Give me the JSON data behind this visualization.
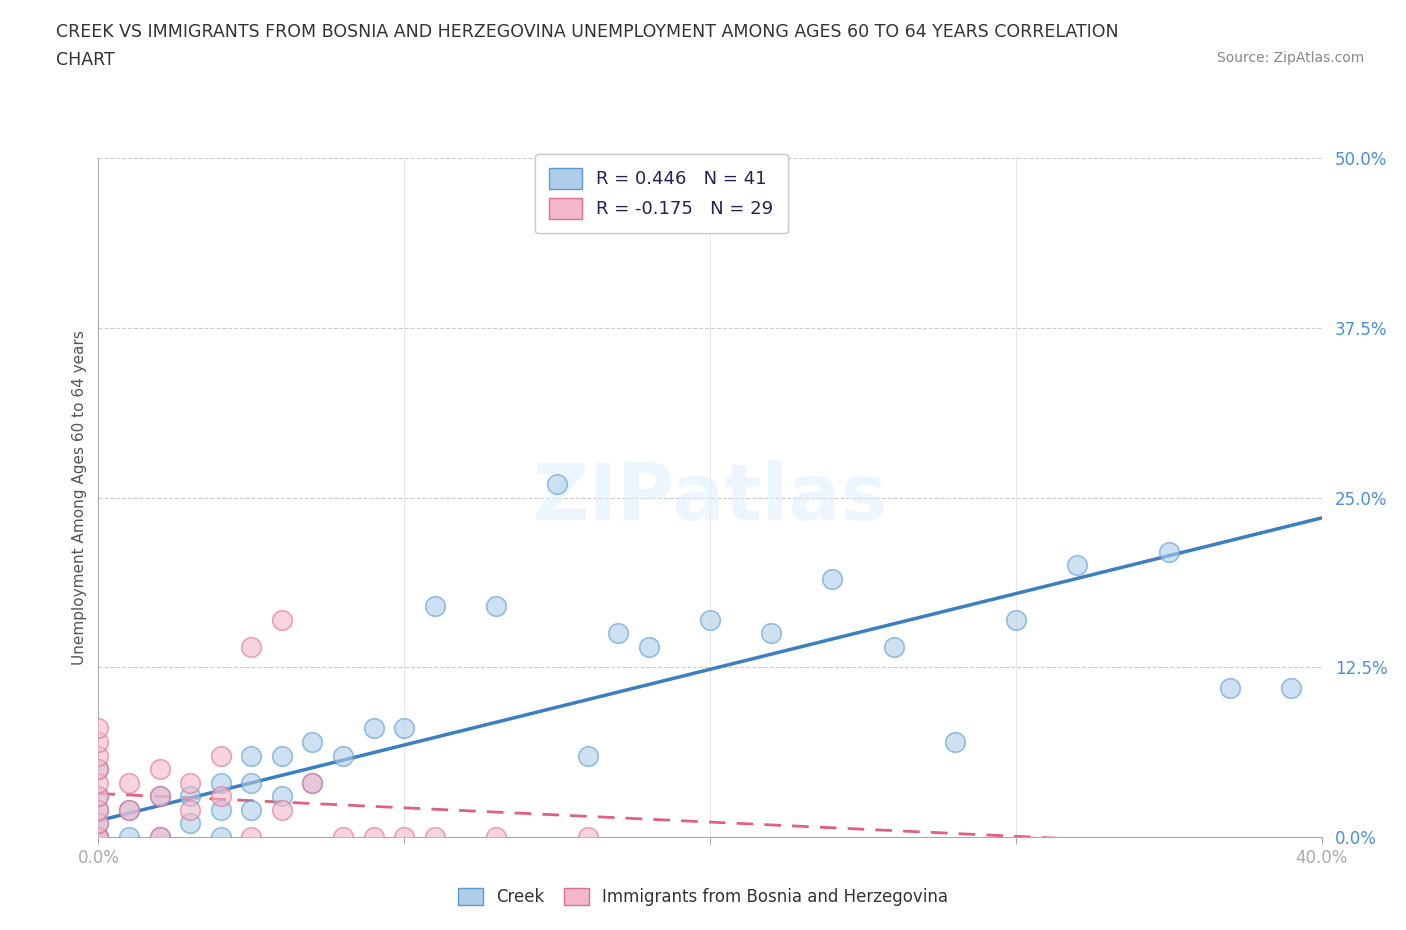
{
  "title_line1": "CREEK VS IMMIGRANTS FROM BOSNIA AND HERZEGOVINA UNEMPLOYMENT AMONG AGES 60 TO 64 YEARS CORRELATION",
  "title_line2": "CHART",
  "source_text": "Source: ZipAtlas.com",
  "ylabel": "Unemployment Among Ages 60 to 64 years",
  "xlim": [
    0.0,
    0.4
  ],
  "ylim": [
    0.0,
    0.5
  ],
  "ytick_labels": [
    "0.0%",
    "12.5%",
    "25.0%",
    "37.5%",
    "50.0%"
  ],
  "ytick_vals": [
    0.0,
    0.125,
    0.25,
    0.375,
    0.5
  ],
  "watermark": "ZIPatlas",
  "legend_r1": "R = 0.446   N = 41",
  "legend_r2": "R = -0.175   N = 29",
  "creek_fill_color": "#aecde8",
  "creek_edge_color": "#5b9bd5",
  "bosnia_fill_color": "#f4b8cb",
  "bosnia_edge_color": "#e07090",
  "creek_line_color": "#3a7fc1",
  "bosnia_line_color": "#e06080",
  "creek_scatter_x": [
    0.0,
    0.0,
    0.0,
    0.0,
    0.0,
    0.0,
    0.01,
    0.01,
    0.02,
    0.02,
    0.03,
    0.03,
    0.04,
    0.04,
    0.04,
    0.05,
    0.05,
    0.05,
    0.06,
    0.06,
    0.07,
    0.07,
    0.08,
    0.09,
    0.1,
    0.11,
    0.13,
    0.15,
    0.16,
    0.17,
    0.18,
    0.2,
    0.22,
    0.24,
    0.26,
    0.28,
    0.3,
    0.32,
    0.35,
    0.37,
    0.39
  ],
  "creek_scatter_y": [
    0.0,
    0.0,
    0.01,
    0.02,
    0.03,
    0.05,
    0.0,
    0.02,
    0.0,
    0.03,
    0.01,
    0.03,
    0.0,
    0.02,
    0.04,
    0.02,
    0.04,
    0.06,
    0.03,
    0.06,
    0.04,
    0.07,
    0.06,
    0.08,
    0.08,
    0.17,
    0.17,
    0.26,
    0.06,
    0.15,
    0.14,
    0.16,
    0.15,
    0.19,
    0.14,
    0.07,
    0.16,
    0.2,
    0.21,
    0.11,
    0.11
  ],
  "bosnia_scatter_x": [
    0.0,
    0.0,
    0.0,
    0.0,
    0.0,
    0.0,
    0.0,
    0.0,
    0.0,
    0.01,
    0.01,
    0.02,
    0.02,
    0.02,
    0.03,
    0.03,
    0.04,
    0.04,
    0.05,
    0.05,
    0.06,
    0.06,
    0.07,
    0.08,
    0.09,
    0.1,
    0.11,
    0.13,
    0.16
  ],
  "bosnia_scatter_y": [
    0.0,
    0.01,
    0.02,
    0.03,
    0.04,
    0.05,
    0.06,
    0.07,
    0.08,
    0.02,
    0.04,
    0.0,
    0.03,
    0.05,
    0.02,
    0.04,
    0.03,
    0.06,
    0.0,
    0.14,
    0.02,
    0.16,
    0.04,
    0.0,
    0.0,
    0.0,
    0.0,
    0.0,
    0.0
  ],
  "creek_line_x0": 0.0,
  "creek_line_y0": 0.012,
  "creek_line_x1": 0.4,
  "creek_line_y1": 0.235,
  "bosnia_line_x0": 0.0,
  "bosnia_line_y0": 0.032,
  "bosnia_line_x1": 0.4,
  "bosnia_line_y1": -0.01,
  "grid_color": "#cccccc",
  "background_color": "#ffffff",
  "title_color": "#333333",
  "axis_label_color": "#555555",
  "tick_label_color": "#4a90d9"
}
